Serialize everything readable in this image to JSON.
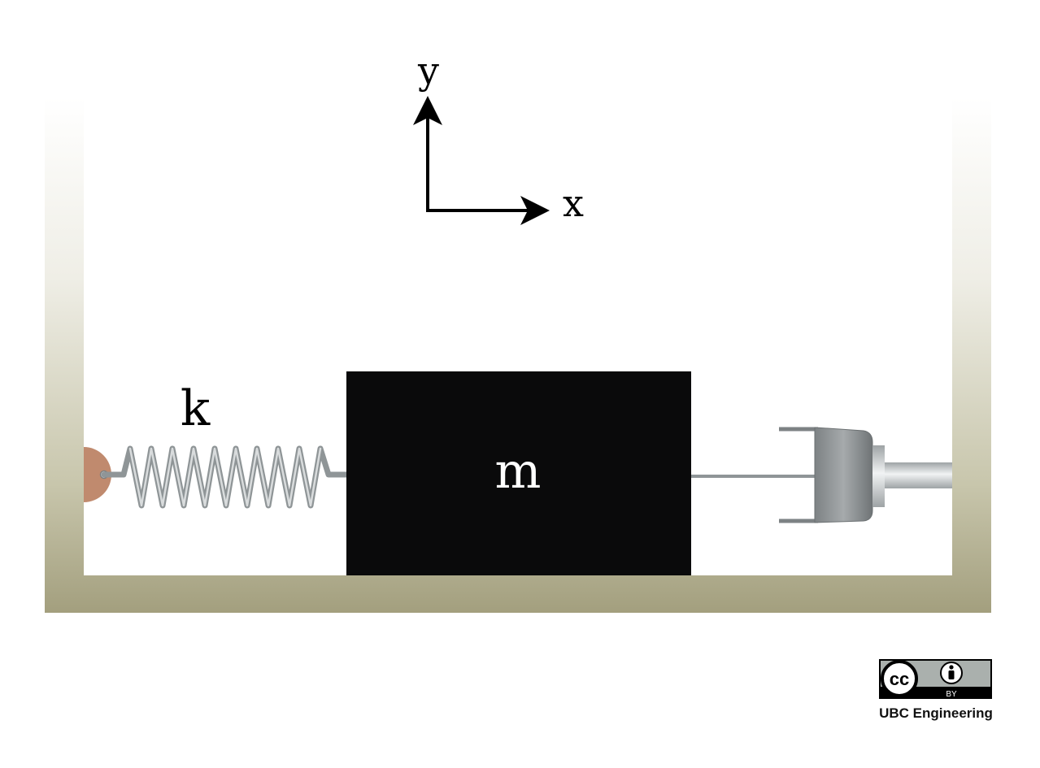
{
  "diagram": {
    "axes": {
      "x_label": "x",
      "y_label": "y"
    },
    "spring_label": "k",
    "mass_label": "m"
  },
  "license": {
    "badge_text": "cc",
    "badge_tag": "BY",
    "credit": "UBC Engineering"
  },
  "colors": {
    "frame_top": "#ffffff",
    "frame_bottom": "#a39f7e",
    "mass": "#0a0a0b",
    "spring": "#9fa4a6",
    "anchor": "#c08a6e",
    "damper_body": "#8f9496",
    "badge_bg": "#aab0ad"
  }
}
